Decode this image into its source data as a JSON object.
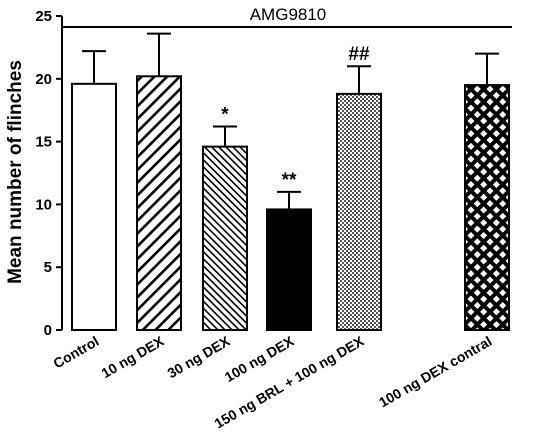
{
  "chart_data": {
    "type": "bar",
    "header": "AMG9810",
    "ylabel": "Mean number of flinches",
    "ylim": [
      0,
      25
    ],
    "yticks": [
      0,
      5,
      10,
      15,
      20,
      25
    ],
    "categories": [
      "Control",
      "10 ng DEX",
      "30 ng DEX",
      "100 ng DEX",
      "150 ng BRL + 100 ng DEX",
      "100 ng  DEX contral"
    ],
    "values": [
      19.6,
      20.2,
      14.6,
      9.6,
      18.8,
      19.5
    ],
    "errors": [
      2.6,
      3.4,
      1.6,
      1.4,
      2.2,
      2.5
    ],
    "significance": [
      "",
      "",
      "*",
      "**",
      "##",
      ""
    ],
    "fills": [
      "white",
      "diag-wide",
      "diag-fine",
      "black",
      "checker",
      "crosshatch"
    ]
  }
}
